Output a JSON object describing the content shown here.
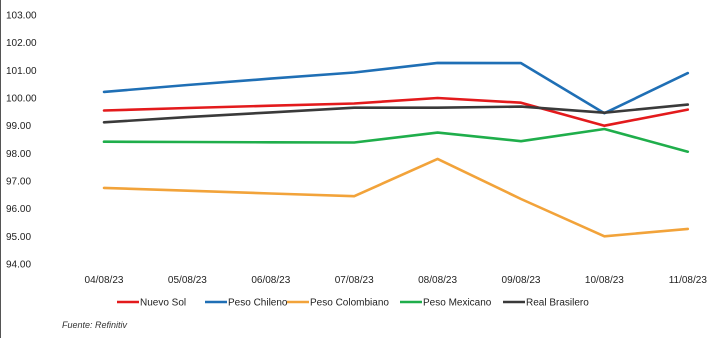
{
  "chart_data": {
    "type": "line",
    "categories": [
      "04/08/23",
      "05/08/23",
      "06/08/23",
      "07/08/23",
      "08/08/23",
      "09/08/23",
      "10/08/23",
      "11/08/23"
    ],
    "series": [
      {
        "name": "Nuevo Sol",
        "color": "#e31a1c",
        "values": [
          99.55,
          99.64,
          99.72,
          99.8,
          100.0,
          99.83,
          99.0,
          99.58
        ]
      },
      {
        "name": "Peso Chileno",
        "color": "#1f6fb5",
        "values": [
          100.22,
          100.47,
          100.7,
          100.92,
          101.27,
          101.26,
          99.45,
          100.9
        ]
      },
      {
        "name": "Peso Colombiano",
        "color": "#f2a33a",
        "values": [
          96.75,
          96.65,
          96.55,
          96.45,
          97.8,
          96.35,
          95.0,
          95.27
        ]
      },
      {
        "name": "Peso Mexicano",
        "color": "#1fae4b",
        "values": [
          98.42,
          98.41,
          98.4,
          98.39,
          98.75,
          98.44,
          98.88,
          98.06
        ]
      },
      {
        "name": "Real Brasilero",
        "color": "#3a3a3a",
        "values": [
          99.12,
          99.31,
          99.48,
          99.65,
          99.65,
          99.69,
          99.47,
          99.76
        ]
      }
    ],
    "ylim": [
      94.0,
      103.0
    ],
    "yticks": [
      "94.00",
      "95.00",
      "96.00",
      "97.00",
      "98.00",
      "99.00",
      "100.00",
      "101.00",
      "102.00",
      "103.00"
    ],
    "grid": false,
    "legend_placement": "bottom"
  },
  "source": "Fuente: Refinitiv"
}
